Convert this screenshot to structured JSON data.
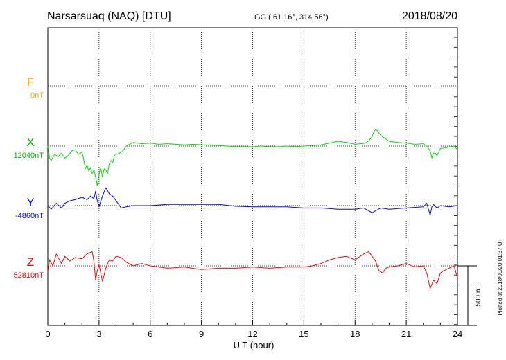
{
  "header": {
    "station": "Narsarsuaq (NAQ)  [DTU]",
    "coords": "GG ( 61.16°, 314.56°)",
    "date": "2018/08/20"
  },
  "side_note": "Plotted at 2018/09/20 01:37 UT",
  "scale_label": "500 nT",
  "colors": {
    "F": "#ffa500",
    "X": "#00e000",
    "Y": "#0000ff",
    "Z": "#ff0000",
    "grid": "#000000"
  },
  "chart_data": {
    "type": "line",
    "xlabel": "U T (hour)",
    "xlim": [
      0,
      24
    ],
    "xticks": [
      0,
      3,
      6,
      9,
      12,
      15,
      18,
      21,
      24
    ],
    "tick_labels": [
      "0",
      "3",
      "6",
      "9",
      "12",
      "15",
      "18",
      "21",
      "24"
    ],
    "scale_bar_nT": 500,
    "series": [
      {
        "name": "F",
        "baseline_label": "0nT",
        "x": [],
        "y": []
      },
      {
        "name": "X",
        "baseline_label": "12040nT",
        "x": [
          0,
          0.1,
          0.2,
          0.4,
          0.6,
          0.8,
          1.0,
          1.2,
          1.4,
          1.6,
          1.8,
          2.0,
          2.1,
          2.2,
          2.3,
          2.4,
          2.5,
          2.6,
          2.7,
          2.8,
          2.9,
          3.0,
          3.1,
          3.2,
          3.3,
          3.4,
          3.5,
          3.6,
          3.7,
          3.8,
          3.9,
          4.0,
          4.2,
          4.4,
          4.6,
          4.8,
          5.0,
          5.5,
          6.0,
          6.5,
          7.0,
          7.5,
          8.0,
          8.5,
          9.0,
          9.5,
          10.0,
          10.5,
          11.0,
          11.5,
          12.0,
          12.5,
          13.0,
          13.5,
          14.0,
          14.5,
          15.0,
          15.5,
          16.0,
          16.5,
          17.0,
          17.5,
          18.0,
          18.3,
          18.6,
          18.8,
          19.0,
          19.1,
          19.2,
          19.3,
          19.5,
          19.8,
          20.0,
          20.5,
          21.0,
          21.5,
          22.0,
          22.2,
          22.4,
          22.5,
          22.6,
          22.7,
          22.8,
          23.0,
          23.3,
          23.6,
          23.8,
          24.0
        ],
        "y": [
          0,
          -100,
          -120,
          -70,
          -90,
          -60,
          -100,
          -80,
          -40,
          -30,
          -70,
          -50,
          -110,
          -190,
          -160,
          -210,
          -180,
          -230,
          -200,
          -260,
          -330,
          -240,
          -180,
          -260,
          -190,
          -200,
          -230,
          -150,
          -120,
          -140,
          -80,
          -70,
          -60,
          -40,
          0,
          15,
          30,
          20,
          25,
          15,
          20,
          15,
          10,
          15,
          10,
          8,
          5,
          0,
          -5,
          -5,
          -5,
          0,
          -5,
          -5,
          0,
          -5,
          0,
          5,
          10,
          25,
          40,
          30,
          15,
          20,
          25,
          45,
          80,
          120,
          140,
          130,
          90,
          60,
          40,
          30,
          25,
          15,
          20,
          0,
          -40,
          -100,
          -60,
          -60,
          -80,
          -20,
          -15,
          -5,
          0,
          -30
        ]
      },
      {
        "name": "Y",
        "baseline_label": "-4860nT",
        "x": [
          0,
          0.2,
          0.5,
          0.8,
          1.0,
          1.3,
          1.6,
          2.0,
          2.3,
          2.5,
          2.7,
          2.8,
          2.9,
          3.0,
          3.2,
          3.4,
          3.6,
          3.8,
          4.0,
          4.3,
          4.6,
          5.0,
          6.0,
          7.0,
          8.0,
          9.0,
          10.0,
          11.0,
          12.0,
          13.0,
          14.0,
          15.0,
          16.0,
          17.0,
          18.0,
          18.5,
          19.0,
          19.5,
          20.0,
          21.0,
          22.0,
          22.2,
          22.4,
          22.5,
          22.6,
          22.8,
          23.0,
          23.5,
          24.0
        ],
        "y": [
          0,
          -30,
          20,
          -20,
          20,
          40,
          50,
          70,
          50,
          80,
          60,
          120,
          40,
          -10,
          80,
          150,
          100,
          80,
          40,
          -20,
          -10,
          0,
          0,
          10,
          10,
          10,
          10,
          -5,
          -10,
          -10,
          -10,
          -20,
          -20,
          -30,
          -30,
          -20,
          -60,
          -20,
          -30,
          -20,
          -10,
          20,
          -80,
          -10,
          10,
          -20,
          0,
          -10,
          0
        ]
      },
      {
        "name": "Z",
        "baseline_label": "52810nT",
        "x": [
          0,
          0.1,
          0.3,
          0.5,
          0.8,
          1.0,
          1.3,
          1.6,
          2.0,
          2.3,
          2.6,
          2.7,
          2.8,
          2.9,
          3.0,
          3.2,
          3.4,
          3.6,
          3.8,
          4.0,
          4.3,
          4.6,
          5.0,
          5.5,
          6.0,
          7.0,
          8.0,
          9.0,
          10.0,
          11.0,
          12.0,
          13.0,
          14.0,
          15.0,
          15.5,
          16.0,
          16.5,
          17.0,
          17.5,
          18.0,
          18.5,
          18.8,
          19.0,
          19.2,
          19.4,
          19.6,
          19.8,
          20.0,
          20.5,
          21.0,
          21.5,
          22.0,
          22.2,
          22.4,
          22.6,
          22.8,
          23.0,
          23.2,
          23.5,
          23.8,
          24.0
        ],
        "y": [
          -50,
          50,
          0,
          100,
          20,
          80,
          40,
          70,
          60,
          100,
          120,
          40,
          -120,
          -40,
          10,
          -130,
          -20,
          50,
          40,
          80,
          70,
          30,
          0,
          20,
          0,
          -20,
          -10,
          -30,
          -20,
          -20,
          -10,
          -20,
          -10,
          -10,
          0,
          20,
          50,
          70,
          80,
          50,
          100,
          120,
          80,
          40,
          -40,
          -60,
          -20,
          -10,
          0,
          20,
          -10,
          0,
          -60,
          -190,
          -120,
          -150,
          -60,
          -40,
          -20,
          0,
          -100
        ]
      }
    ]
  }
}
